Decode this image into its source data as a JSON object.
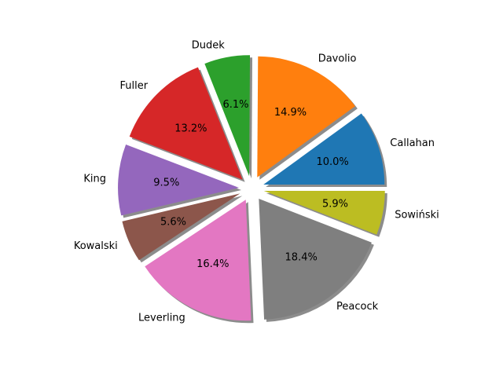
{
  "chart_data": {
    "type": "pie",
    "title": "",
    "start_angle_deg": 0,
    "direction": "counterclockwise",
    "exploded": true,
    "shadow": true,
    "slices": [
      {
        "label": "Callahan",
        "value": 10.0,
        "pct_label": "10.0%",
        "color": "#1f77b4"
      },
      {
        "label": "Davolio",
        "value": 14.9,
        "pct_label": "14.9%",
        "color": "#ff7f0e"
      },
      {
        "label": "Dudek",
        "value": 6.1,
        "pct_label": "6.1%",
        "color": "#2ca02c"
      },
      {
        "label": "Fuller",
        "value": 13.2,
        "pct_label": "13.2%",
        "color": "#d62728"
      },
      {
        "label": "King",
        "value": 9.5,
        "pct_label": "9.5%",
        "color": "#9467bd"
      },
      {
        "label": "Kowalski",
        "value": 5.6,
        "pct_label": "5.6%",
        "color": "#8c564b"
      },
      {
        "label": "Leverling",
        "value": 16.4,
        "pct_label": "16.4%",
        "color": "#e377c2"
      },
      {
        "label": "Peacock",
        "value": 18.4,
        "pct_label": "18.4%",
        "color": "#7f7f7f"
      },
      {
        "label": "Sowiński",
        "value": 5.9,
        "pct_label": "5.9%",
        "color": "#bcbd22"
      }
    ]
  }
}
